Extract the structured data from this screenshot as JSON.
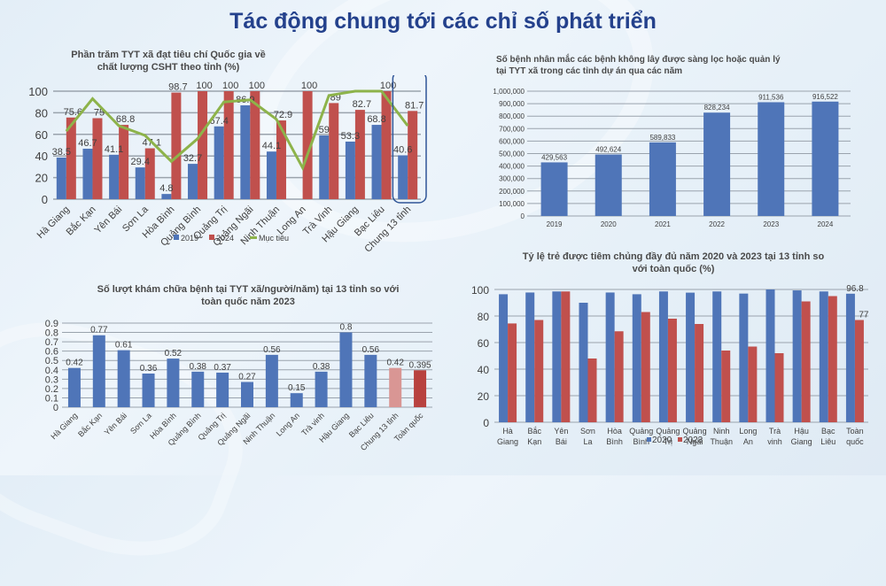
{
  "page": {
    "title": "Tác động chung tới  các chỉ số phát triển"
  },
  "colors": {
    "title": "#24418c",
    "blue": "#4f75b8",
    "red": "#c0504d",
    "green": "#8db34a",
    "pink": "#d99694",
    "darkred": "#b8423f",
    "grid": "#9aa3ad"
  },
  "chart_data": [
    {
      "id": "csht",
      "type": "bar",
      "title": "Phần trăm TYT xã đạt tiêu chí Quốc gia về chất lượng CSHT theo tỉnh (%)",
      "title_lines": [
        "Phần trăm TYT xã đạt tiêu chí Quốc gia về",
        "chất lượng CSHT theo tỉnh (%)"
      ],
      "categories": [
        "Hà Giang",
        "Bắc Kạn",
        "Yên Bái",
        "Sơn La",
        "Hòa Bình",
        "Quảng Bình",
        "Quảng Trị",
        "Quảng Ngãi",
        "Ninh Thuận",
        "Long An",
        "Trà Vinh",
        "Hậu Giang",
        "Bạc Liêu",
        "Chung 13 tỉnh"
      ],
      "series": [
        {
          "name": "2019",
          "type": "bar",
          "values": [
            38.5,
            46.7,
            41.1,
            29.4,
            4.8,
            32.7,
            67.4,
            86.9,
            44.1,
            null,
            59,
            53.3,
            68.8,
            40.6
          ],
          "labels": [
            "38.5",
            "46.7",
            "41.1",
            "29.4",
            "4.8",
            "32.7",
            "67.4",
            "86.9",
            "44.1",
            "",
            "59",
            "53.3",
            "68.8",
            "40.6"
          ]
        },
        {
          "name": "2024",
          "type": "bar",
          "values": [
            75.6,
            75,
            68.8,
            47.1,
            98.7,
            100,
            100,
            100,
            72.9,
            100,
            89,
            82.7,
            100,
            81.7
          ],
          "labels": [
            "75.6",
            "75",
            "68.8",
            "47.1",
            "98.7",
            "100",
            "100",
            "100",
            "72.9",
            "100",
            "89",
            "82.7",
            "100",
            "81.7"
          ]
        },
        {
          "name": "Mục tiêu",
          "type": "line",
          "values": [
            63,
            93,
            68,
            59,
            35,
            56,
            90,
            92,
            74,
            29,
            96,
            100,
            100,
            68
          ]
        }
      ],
      "yticks": [
        0,
        20,
        40,
        60,
        80,
        100
      ],
      "ylim": [
        0,
        100
      ],
      "xlabel": "",
      "ylabel": "",
      "grid": true,
      "legend": [
        "2019",
        "2024",
        "Mục tiêu"
      ],
      "legend_position": "bottom",
      "annotation": "highlight box around Chung 13 tỉnh"
    },
    {
      "id": "ncd",
      "type": "bar",
      "title": "Số bệnh nhân mắc các bệnh không lây được sàng lọc hoặc quản lý tại TYT xã trong các tỉnh dự án qua các năm",
      "title_lines": [
        "Số bệnh nhân mắc các bệnh không lây được sàng lọc hoặc quản lý",
        "tại TYT xã trong các tỉnh dự án qua các năm"
      ],
      "categories": [
        "2019",
        "2020",
        "2021",
        "2022",
        "2023",
        "2024"
      ],
      "values": [
        429563,
        492624,
        589833,
        828234,
        911536,
        916522
      ],
      "labels": [
        "429,563",
        "492,624",
        "589,833",
        "828,234",
        "911,536",
        "916,522"
      ],
      "yticks": [
        "0",
        "100,000",
        "200,000",
        "300,000",
        "400,000",
        "500,000",
        "600,000",
        "700,000",
        "800,000",
        "900,000",
        "1,000,000"
      ],
      "ylim": [
        0,
        1000000
      ],
      "xlabel": "",
      "ylabel": "",
      "grid": true
    },
    {
      "id": "visits",
      "type": "bar",
      "title": "Số lượt khám chữa bệnh tại TYT xã/người/năm) tại 13 tỉnh so với toàn quốc năm 2023",
      "title_lines": [
        "Số lượt khám chữa bệnh tại TYT xã/người/năm) tại 13 tỉnh so với",
        "toàn quốc năm 2023"
      ],
      "categories": [
        "Hà Giang",
        "Bắc Kạn",
        "Yên Bái",
        "Sơn La",
        "Hòa Bình",
        "Quảng Bình",
        "Quảng Trị",
        "Quảng Ngãi",
        "Ninh Thuận",
        "Long An",
        "Trà vinh",
        "Hậu Giang",
        "Bạc Liêu",
        "Chung 13 tỉnh",
        "Toàn quốc"
      ],
      "values": [
        0.42,
        0.77,
        0.61,
        0.36,
        0.52,
        0.38,
        0.37,
        0.27,
        0.56,
        0.15,
        0.38,
        0.8,
        0.56,
        0.42,
        0.395
      ],
      "labels": [
        "0.42",
        "0.77",
        "0.61",
        "0.36",
        "0.52",
        "0.38",
        "0.37",
        "0.27",
        "0.56",
        "0.15",
        "0.38",
        "0.8",
        "0.56",
        "0.42",
        "0.395"
      ],
      "bar_colors": [
        "#4f75b8",
        "#4f75b8",
        "#4f75b8",
        "#4f75b8",
        "#4f75b8",
        "#4f75b8",
        "#4f75b8",
        "#4f75b8",
        "#4f75b8",
        "#4f75b8",
        "#4f75b8",
        "#4f75b8",
        "#4f75b8",
        "#d99694",
        "#b8423f"
      ],
      "yticks": [
        "0",
        "0.1",
        "0.2",
        "0.3",
        "0.4",
        "0.5",
        "0.6",
        "0.7",
        "0.8",
        "0.9"
      ],
      "ylim": [
        0,
        0.9
      ],
      "xlabel": "",
      "ylabel": "",
      "grid": true
    },
    {
      "id": "vaccine",
      "type": "bar",
      "title": "Tỷ lệ trẻ được tiêm chủng đầy đủ năm 2020 và 2023 tại 13 tỉnh so với toàn quốc (%)",
      "title_lines": [
        "Tỷ lệ trẻ được tiêm chủng đầy đủ năm 2020 và 2023 tại 13 tỉnh so",
        "với toàn quốc (%)"
      ],
      "categories": [
        "Hà Giang",
        "Bắc Kạn",
        "Yên Bái",
        "Sơn La",
        "Hòa Bình",
        "Quảng Bình",
        "Quảng Trị",
        "Quảng Ngãi",
        "Ninh Thuận",
        "Long An",
        "Trà vinh",
        "Hậu Giang",
        "Bạc Liêu",
        "Toàn quốc"
      ],
      "category_lines": [
        [
          "Hà",
          "Giang"
        ],
        [
          "Bắc",
          "Kạn"
        ],
        [
          "Yên",
          "Bái"
        ],
        [
          "Sơn",
          "La"
        ],
        [
          "Hòa",
          "Bình"
        ],
        [
          "Quảng",
          "Bình"
        ],
        [
          "Quảng",
          "Trị"
        ],
        [
          "Quảng",
          "Ngãi"
        ],
        [
          "Ninh",
          "Thuận"
        ],
        [
          "Long",
          "An"
        ],
        [
          "Trà",
          "vinh"
        ],
        [
          "Hậu",
          "Giang"
        ],
        [
          "Bạc",
          "Liêu"
        ],
        [
          "Toàn",
          "quốc"
        ]
      ],
      "series": [
        {
          "name": "2020",
          "values": [
            96.4,
            97.7,
            98.5,
            90,
            97.7,
            96.4,
            98.5,
            97.6,
            98.5,
            96.9,
            100,
            99.3,
            98.5,
            96.8
          ]
        },
        {
          "name": "2023",
          "values": [
            74.4,
            77,
            98.5,
            48,
            68.5,
            83,
            78,
            74,
            54,
            57,
            52,
            91,
            95,
            77
          ]
        }
      ],
      "point_labels": [
        {
          "series": "2020",
          "index": 13,
          "text": "96.8"
        },
        {
          "series": "2023",
          "index": 13,
          "text": "77"
        }
      ],
      "yticks": [
        0,
        20,
        40,
        60,
        80,
        100
      ],
      "ylim": [
        0,
        100
      ],
      "xlabel": "",
      "ylabel": "",
      "grid": true,
      "legend": [
        "2020",
        "2023"
      ],
      "legend_position": "bottom"
    }
  ]
}
